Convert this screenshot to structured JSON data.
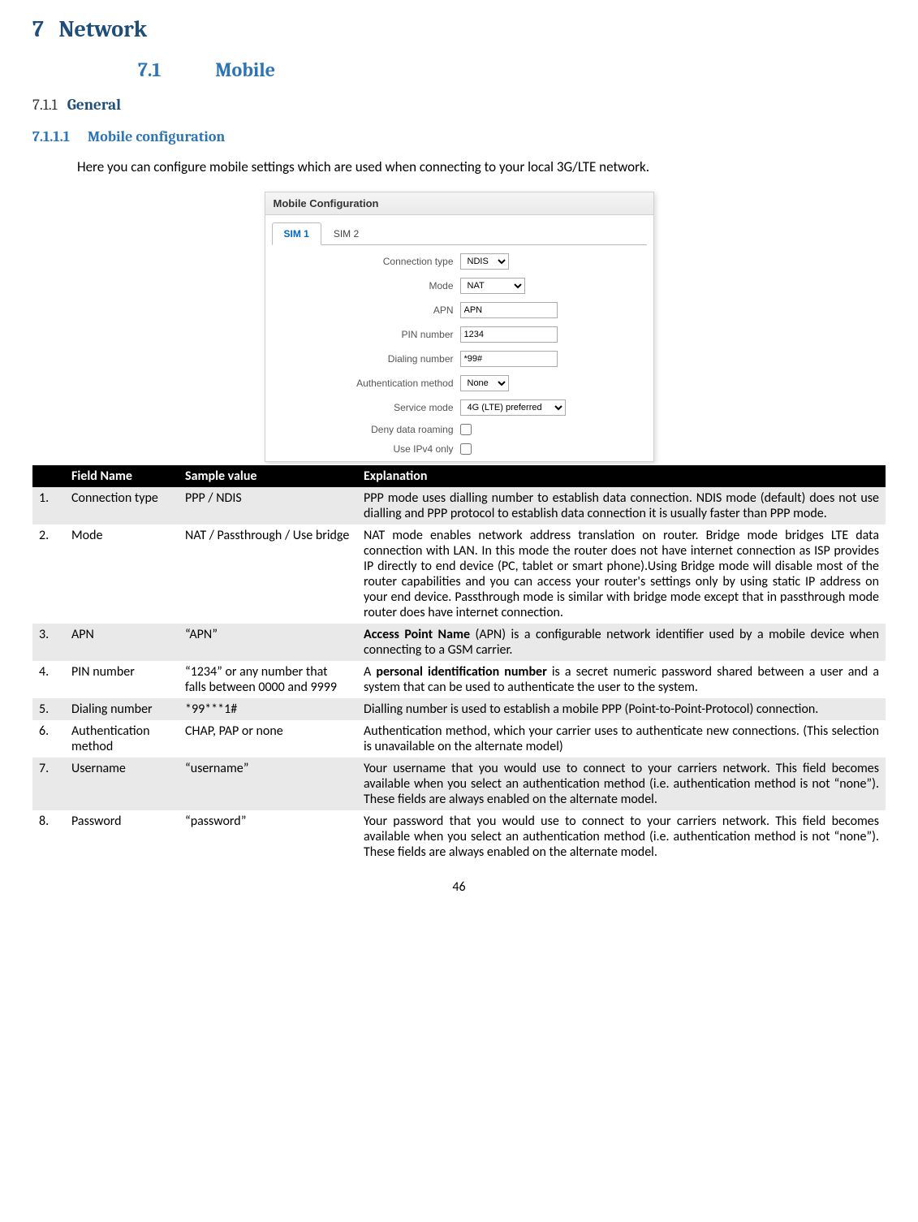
{
  "section": {
    "h1_num": "7",
    "h1_title": "Network",
    "h2_num": "7.1",
    "h2_title": "Mobile",
    "h3_num": "7.1.1",
    "h3_title": "General",
    "h4_num": "7.1.1.1",
    "h4_title": "Mobile configuration",
    "intro": "Here you can configure mobile settings which are used when connecting to your local 3G/LTE network."
  },
  "config": {
    "title": "Mobile Configuration",
    "tab1": "SIM 1",
    "tab2": "SIM 2",
    "labels": {
      "conn_type": "Connection type",
      "mode": "Mode",
      "apn": "APN",
      "pin": "PIN number",
      "dial": "Dialing number",
      "auth": "Authentication method",
      "service": "Service mode",
      "deny": "Deny data roaming",
      "ipv4": "Use IPv4 only"
    },
    "values": {
      "conn_type": "NDIS",
      "mode": "NAT",
      "apn": "APN",
      "pin": "1234",
      "dial": "*99#",
      "auth": "None",
      "service": "4G (LTE) preferred"
    }
  },
  "table": {
    "headers": {
      "c0": "",
      "c1": "Field Name",
      "c2": "Sample value",
      "c3": "Explanation"
    },
    "rows": [
      {
        "n": "1.",
        "field": "Connection type",
        "sample": "PPP / NDIS",
        "exp": "PPP mode uses dialling number to establish data connection. NDIS mode (default) does not use dialling and PPP protocol to establish data connection it is usually faster than PPP mode."
      },
      {
        "n": "2.",
        "field": "Mode",
        "sample": "NAT / Passthrough / Use bridge",
        "exp": "NAT mode enables network address translation on router. Bridge mode bridges LTE data connection with LAN. In this mode the router does not have internet connection as ISP provides IP directly to end device (PC, tablet or smart phone).Using Bridge mode will disable most of the router capabilities and you can access your router's settings only by using static IP address on your end device. Passthrough mode is similar with bridge mode except that in passthrough mode router does have internet connection."
      },
      {
        "n": "3.",
        "field": "APN",
        "sample": "“APN”",
        "exp_html": "<b>Access Point Name</b> (APN) is a configurable network identifier used by a mobile device when connecting to a GSM carrier."
      },
      {
        "n": "4.",
        "field": "PIN number",
        "sample": "“1234” or any number that falls between 0000 and 9999",
        "exp_html": "A <b>personal identification number</b> is a secret numeric password shared between a user and a system that can be used to authenticate the user to the system."
      },
      {
        "n": "5.",
        "field": "Dialing number",
        "sample": "*99***1#",
        "exp": "Dialling number is used to establish a mobile PPP (Point-to-Point-Protocol) connection."
      },
      {
        "n": "6.",
        "field": "Authentication method",
        "sample": "CHAP, PAP or none",
        "exp": "Authentication method, which your carrier uses to authenticate new connections. (This selection is unavailable on the alternate model)"
      },
      {
        "n": "7.",
        "field": "Username",
        "sample": "“username”",
        "exp": "Your username that you would use to connect to your carriers network. This field becomes available when you select an authentication method (i.e. authentication method is not “none”). These fields are always enabled on the alternate model."
      },
      {
        "n": "8.",
        "field": "Password",
        "sample": "“password”",
        "exp": "Your password that you would use to connect to your carriers network. This field becomes available when you select an authentication method (i.e. authentication method is not “none”). These fields are always enabled on the alternate model."
      }
    ]
  },
  "page_number": "46"
}
